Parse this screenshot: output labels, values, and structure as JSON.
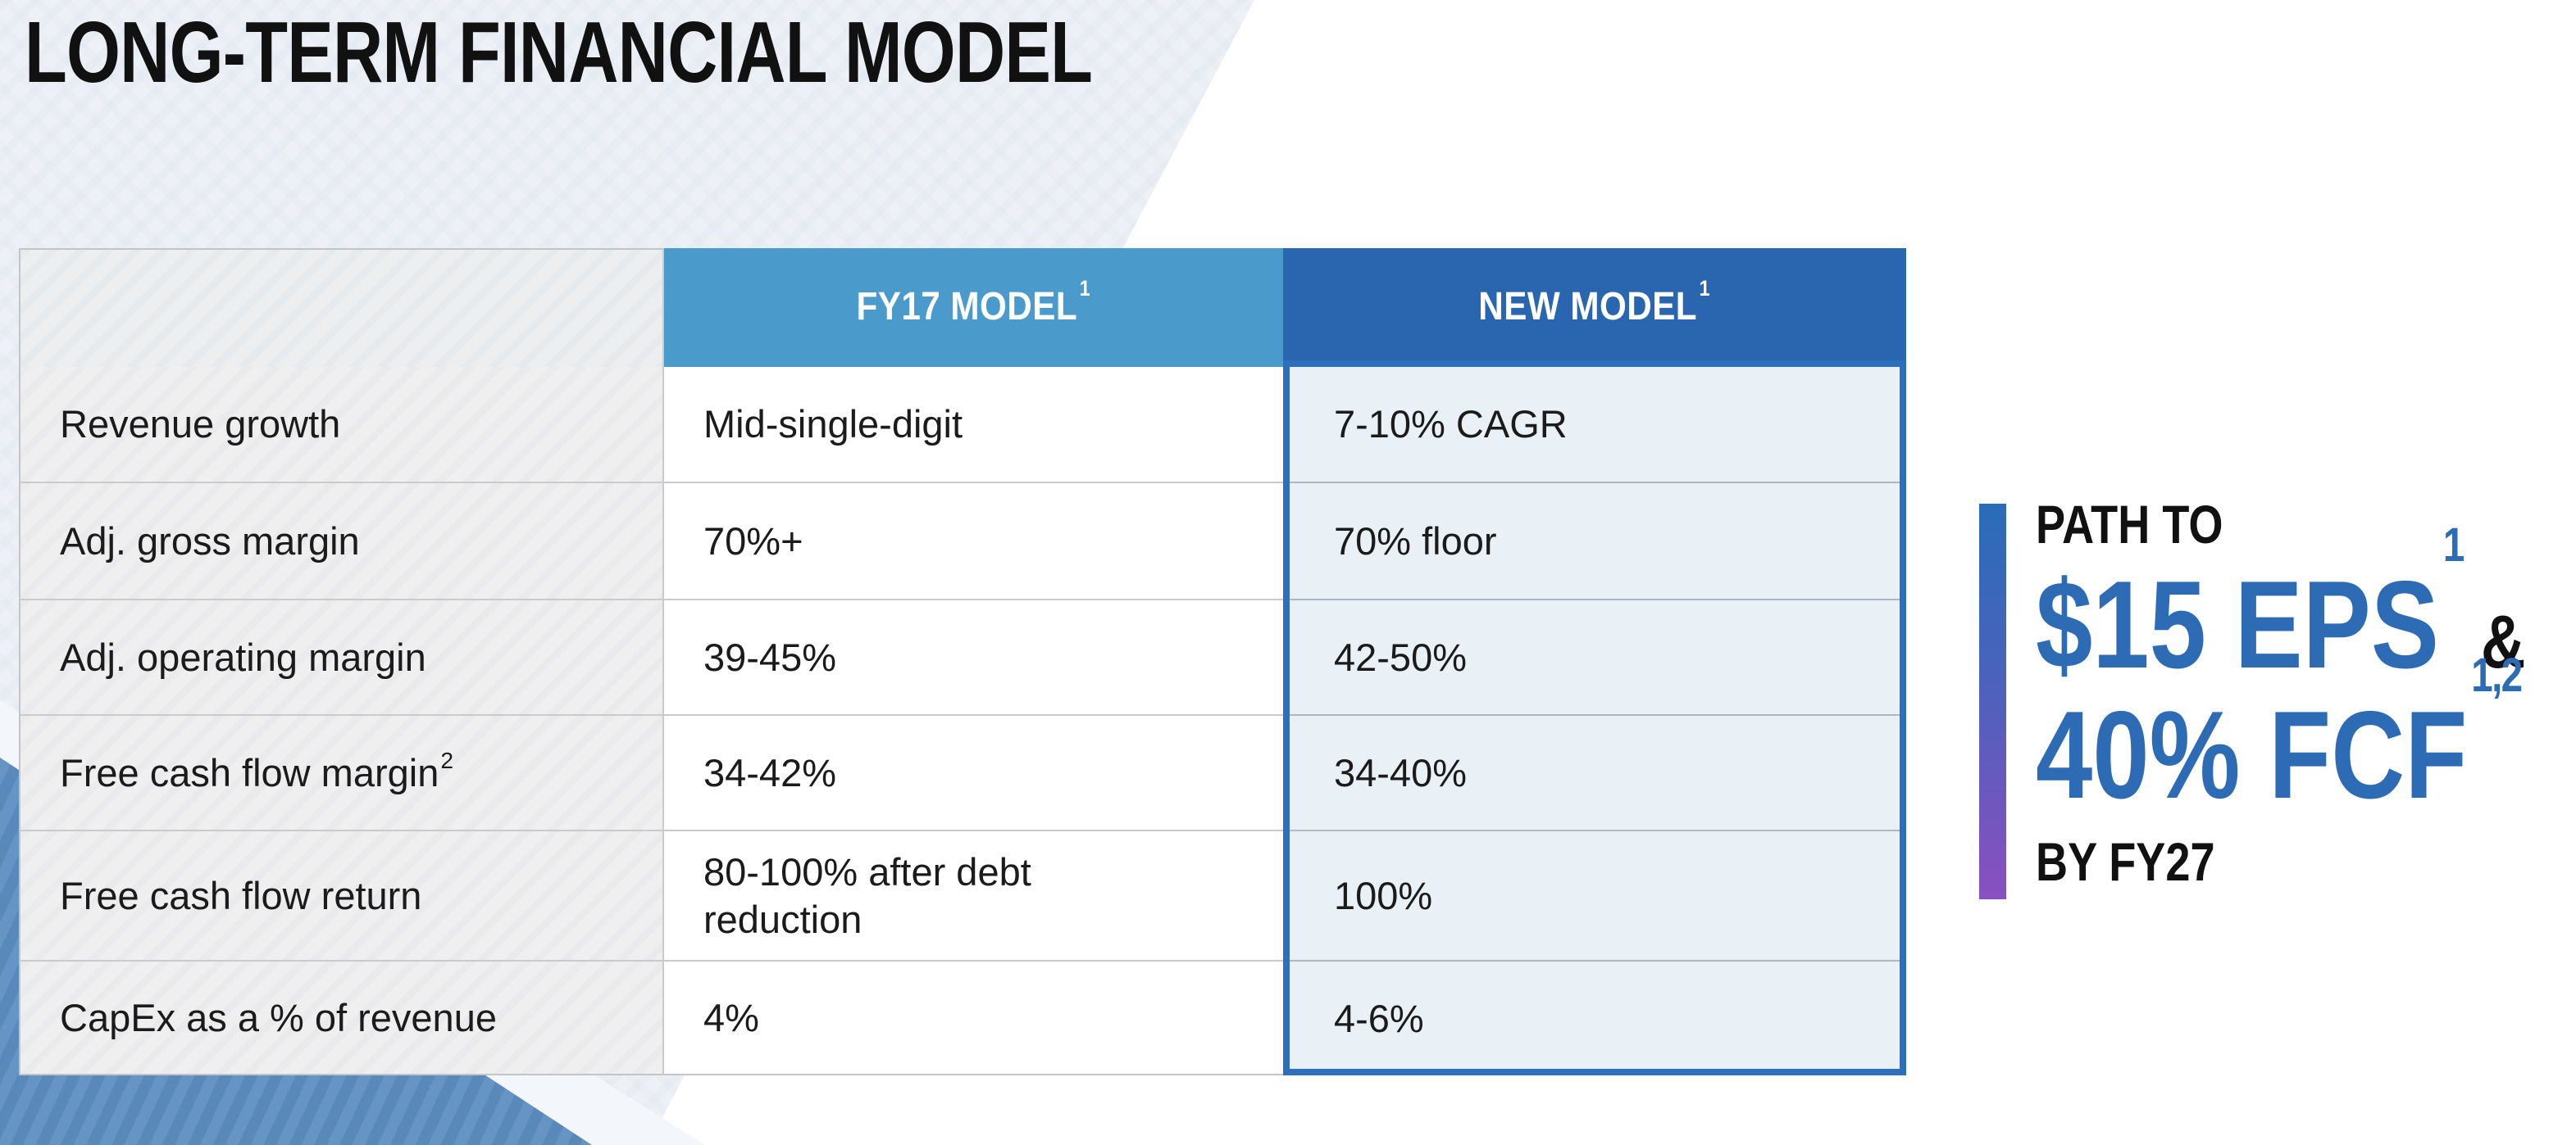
{
  "slide": {
    "title": "LONG-TERM FINANCIAL MODEL"
  },
  "table": {
    "columns": [
      {
        "label": "",
        "sup": ""
      },
      {
        "label": "FY17 MODEL",
        "sup": "1"
      },
      {
        "label": "NEW MODEL",
        "sup": "1"
      }
    ],
    "rows": [
      {
        "label": "Revenue growth",
        "label_sup": "",
        "fy17": "Mid-single-digit",
        "new_model": "7-10% CAGR"
      },
      {
        "label": "Adj. gross margin",
        "label_sup": "",
        "fy17": "70%+",
        "new_model": "70% floor"
      },
      {
        "label": "Adj. operating margin",
        "label_sup": "",
        "fy17": "39-45%",
        "new_model": "42-50%"
      },
      {
        "label": "Free cash flow margin",
        "label_sup": "2",
        "fy17": "34-42%",
        "new_model": "34-40%"
      },
      {
        "label": "Free cash flow return",
        "label_sup": "",
        "fy17": "80-100% after debt reduction",
        "new_model": "100%"
      },
      {
        "label": "CapEx as a % of revenue",
        "label_sup": "",
        "fy17": "4%",
        "new_model": "4-6%"
      }
    ]
  },
  "callout": {
    "kicker": "PATH TO",
    "eps_value": "$15 EPS",
    "eps_sup": "1",
    "ampersand": "&",
    "fcf_value": "40% FCF",
    "fcf_sup": "1,2",
    "footer": "BY FY27"
  },
  "colors": {
    "fy17_header": "#4A9BCB",
    "new_model_header": "#2A66B0",
    "new_model_border": "#2E6FBD",
    "new_model_body": "#E9F1F7",
    "label_column": "#EFEFEF",
    "callout_blue": "#2D6CB4",
    "bar_gradient_top": "#2A6CB8",
    "bar_gradient_bottom": "#8A4FC0",
    "bg_triangle_blue": "#5C8DC0",
    "bg_polygon_light": "#EDF1F6"
  }
}
